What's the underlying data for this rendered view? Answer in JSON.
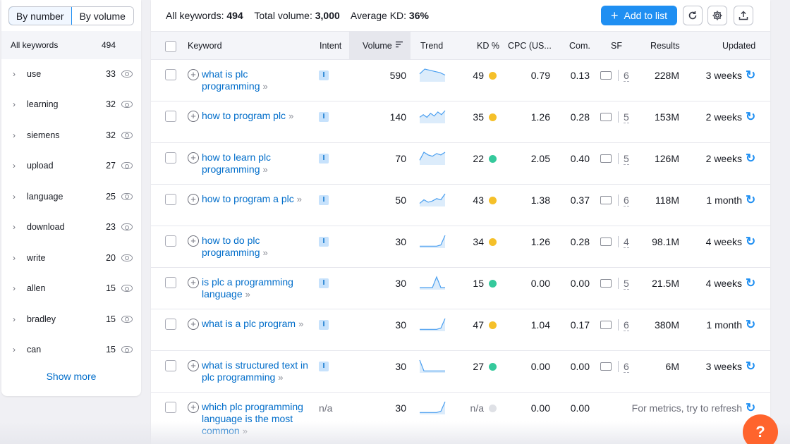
{
  "sidebar": {
    "tab_by_number": "By number",
    "tab_by_volume": "By volume",
    "all_label": "All keywords",
    "all_count": "494",
    "groups": [
      {
        "label": "use",
        "count": "33"
      },
      {
        "label": "learning",
        "count": "32"
      },
      {
        "label": "siemens",
        "count": "32"
      },
      {
        "label": "upload",
        "count": "27"
      },
      {
        "label": "language",
        "count": "25"
      },
      {
        "label": "download",
        "count": "23"
      },
      {
        "label": "write",
        "count": "20"
      },
      {
        "label": "allen",
        "count": "15"
      },
      {
        "label": "bradley",
        "count": "15"
      },
      {
        "label": "can",
        "count": "15"
      }
    ],
    "show_more": "Show more"
  },
  "summary": {
    "all_label": "All keywords:",
    "all_value": "494",
    "volume_label": "Total volume:",
    "volume_value": "3,000",
    "kd_label": "Average KD:",
    "kd_value": "36%"
  },
  "toolbar": {
    "add_to_list": "Add to list"
  },
  "columns": {
    "keyword": "Keyword",
    "intent": "Intent",
    "volume": "Volume",
    "trend": "Trend",
    "kd": "KD %",
    "cpc": "CPC (US...",
    "com": "Com.",
    "sf": "SF",
    "results": "Results",
    "updated": "Updated"
  },
  "colors": {
    "accent": "#1f8ff2",
    "link": "#006dca",
    "kd_yellow": "#f5c02a",
    "kd_green": "#35c99c",
    "kd_na": "#dfe1e6",
    "help": "#ff642d"
  },
  "rows": [
    {
      "keyword": "what is plc programming",
      "intent": "I",
      "volume": "590",
      "trend": [
        6,
        10,
        9,
        8,
        7,
        5
      ],
      "kd": "49",
      "kd_color": "#f5c02a",
      "cpc": "0.79",
      "com": "0.13",
      "sf": "6",
      "results": "228M",
      "updated": "3 weeks"
    },
    {
      "keyword": "how to program plc",
      "intent": "I",
      "volume": "140",
      "trend": [
        4,
        6,
        4,
        7,
        5,
        8,
        6,
        9
      ],
      "kd": "35",
      "kd_color": "#f5c02a",
      "cpc": "1.26",
      "com": "0.28",
      "sf": "5",
      "results": "153M",
      "updated": "2 weeks"
    },
    {
      "keyword": "how to learn plc programming",
      "intent": "I",
      "volume": "70",
      "trend": [
        3,
        9,
        7,
        6,
        8,
        7,
        9
      ],
      "kd": "22",
      "kd_color": "#35c99c",
      "cpc": "2.05",
      "com": "0.40",
      "sf": "5",
      "results": "126M",
      "updated": "2 weeks"
    },
    {
      "keyword": "how to program a plc",
      "intent": "I",
      "volume": "50",
      "trend": [
        2,
        5,
        3,
        4,
        6,
        5,
        10
      ],
      "kd": "43",
      "kd_color": "#f5c02a",
      "cpc": "1.38",
      "com": "0.37",
      "sf": "6",
      "results": "118M",
      "updated": "1 month"
    },
    {
      "keyword": "how to do plc programming",
      "intent": "I",
      "volume": "30",
      "trend": [
        1,
        1,
        1,
        1,
        1,
        2,
        10
      ],
      "kd": "34",
      "kd_color": "#f5c02a",
      "cpc": "1.26",
      "com": "0.28",
      "sf": "4",
      "results": "98.1M",
      "updated": "4 weeks"
    },
    {
      "keyword": "is plc a programming language",
      "intent": "I",
      "volume": "30",
      "trend": [
        1,
        1,
        1,
        1,
        9,
        1,
        1
      ],
      "kd": "15",
      "kd_color": "#35c99c",
      "cpc": "0.00",
      "com": "0.00",
      "sf": "5",
      "results": "21.5M",
      "updated": "4 weeks"
    },
    {
      "keyword": "what is a plc program",
      "intent": "I",
      "volume": "30",
      "trend": [
        1,
        1,
        1,
        1,
        1,
        2,
        10
      ],
      "kd": "47",
      "kd_color": "#f5c02a",
      "cpc": "1.04",
      "com": "0.17",
      "sf": "6",
      "results": "380M",
      "updated": "1 month"
    },
    {
      "keyword": "what is structured text in plc programming",
      "intent": "I",
      "volume": "30",
      "trend": [
        10,
        1,
        1,
        1,
        1,
        1,
        1
      ],
      "kd": "27",
      "kd_color": "#35c99c",
      "cpc": "0.00",
      "com": "0.00",
      "sf": "6",
      "results": "6M",
      "updated": "3 weeks"
    },
    {
      "keyword": "which plc programming language is the most common",
      "intent": "n/a",
      "volume": "30",
      "trend": [
        1,
        1,
        1,
        1,
        1,
        2,
        10
      ],
      "kd": "n/a",
      "kd_color": "#dfe1e6",
      "cpc": "0.00",
      "com": "0.00",
      "sf": "",
      "results": "",
      "updated": "",
      "hint": "For metrics, try to refresh"
    }
  ]
}
